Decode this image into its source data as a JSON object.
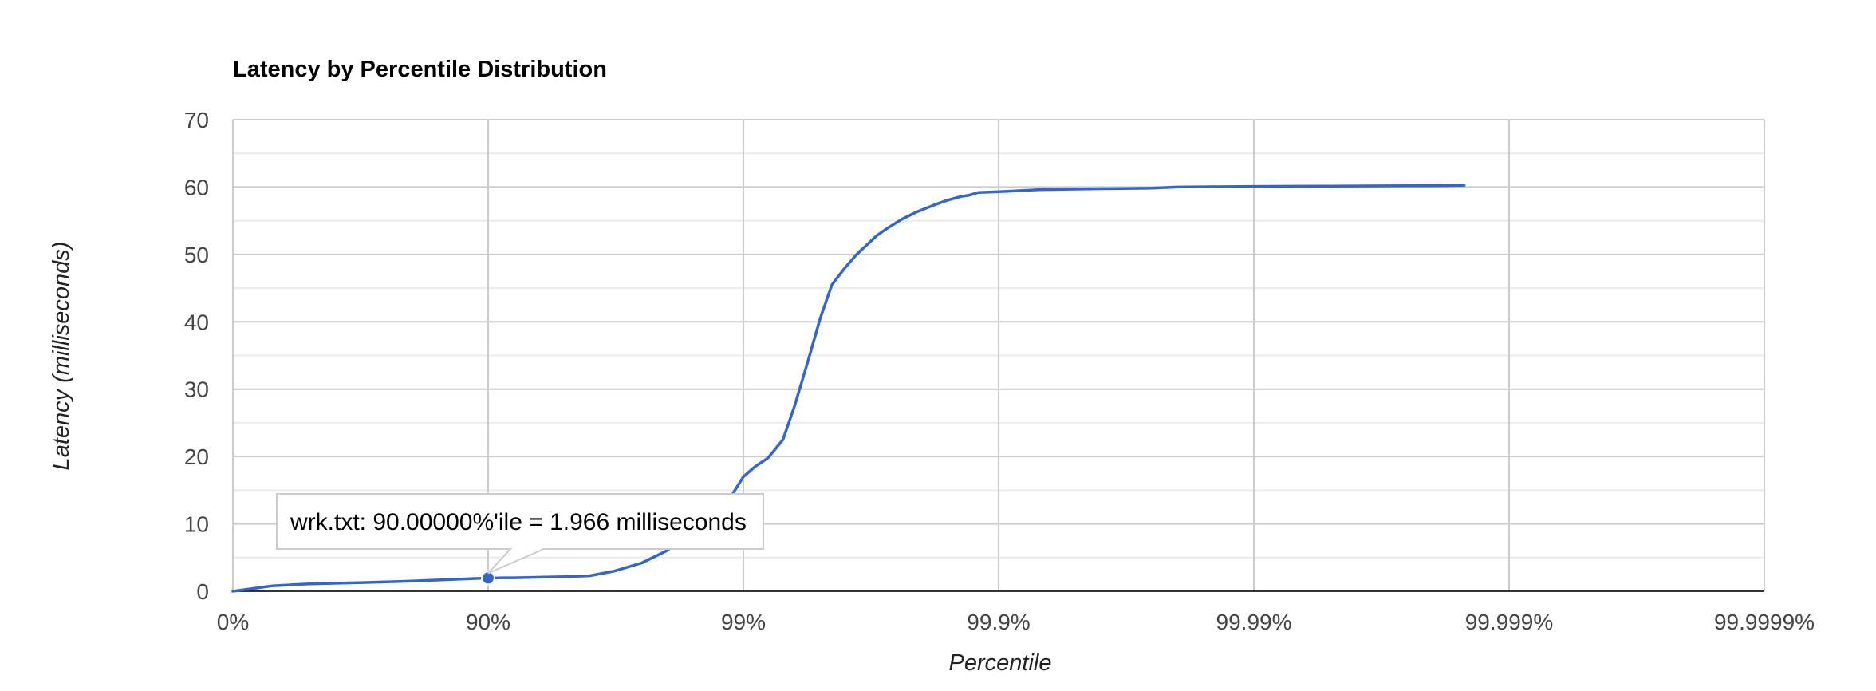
{
  "chart_data": {
    "type": "line",
    "title": "Latency by Percentile Distribution",
    "xlabel": "Percentile",
    "ylabel": "Latency (milliseconds)",
    "x_scale": "log(1/(1-percentile))",
    "x_ticks": [
      "0%",
      "90%",
      "99%",
      "99.9%",
      "99.99%",
      "99.999%",
      "99.9999%"
    ],
    "y_ticks": [
      "0",
      "10",
      "20",
      "30",
      "40",
      "50",
      "60",
      "70"
    ],
    "ylim": [
      0,
      70
    ],
    "grid": true,
    "color": "#3366cc",
    "series": [
      {
        "name": "wrk.txt",
        "x": [
          0,
          30,
          50,
          70,
          80,
          85,
          88,
          90,
          92,
          94,
          95,
          96,
          96.8,
          97.5,
          98,
          98.4,
          98.7,
          98.9,
          99.0,
          99.1,
          99.2,
          99.3,
          99.37,
          99.44,
          99.5,
          99.55,
          99.6,
          99.64,
          99.7,
          99.73,
          99.76,
          99.79,
          99.82,
          99.84,
          99.86,
          99.87,
          99.88,
          99.9,
          99.92,
          99.93,
          99.95,
          99.96,
          99.97,
          99.975,
          99.98,
          99.985,
          99.99,
          99.993,
          99.995,
          99.997,
          99.998,
          99.9985
        ],
        "y": [
          0,
          0.8,
          1.1,
          1.3,
          1.5,
          1.7,
          1.85,
          1.966,
          2.0,
          2.1,
          2.15,
          2.3,
          3.0,
          4.2,
          6.0,
          8.5,
          12.0,
          14.5,
          17.0,
          18.5,
          19.8,
          22.5,
          27.5,
          34.0,
          40.5,
          45.5,
          48.0,
          50.0,
          52.8,
          54.0,
          55.2,
          56.3,
          57.3,
          58.0,
          58.6,
          58.8,
          59.2,
          59.3,
          59.5,
          59.6,
          59.7,
          59.75,
          59.8,
          59.85,
          60.0,
          60.05,
          60.1,
          60.12,
          60.15,
          60.18,
          60.2,
          60.25
        ]
      }
    ],
    "highlight": {
      "series": "wrk.txt",
      "x": 90,
      "y": 1.966,
      "tooltip": "wrk.txt: 90.00000%'ile = 1.966 milliseconds"
    }
  }
}
